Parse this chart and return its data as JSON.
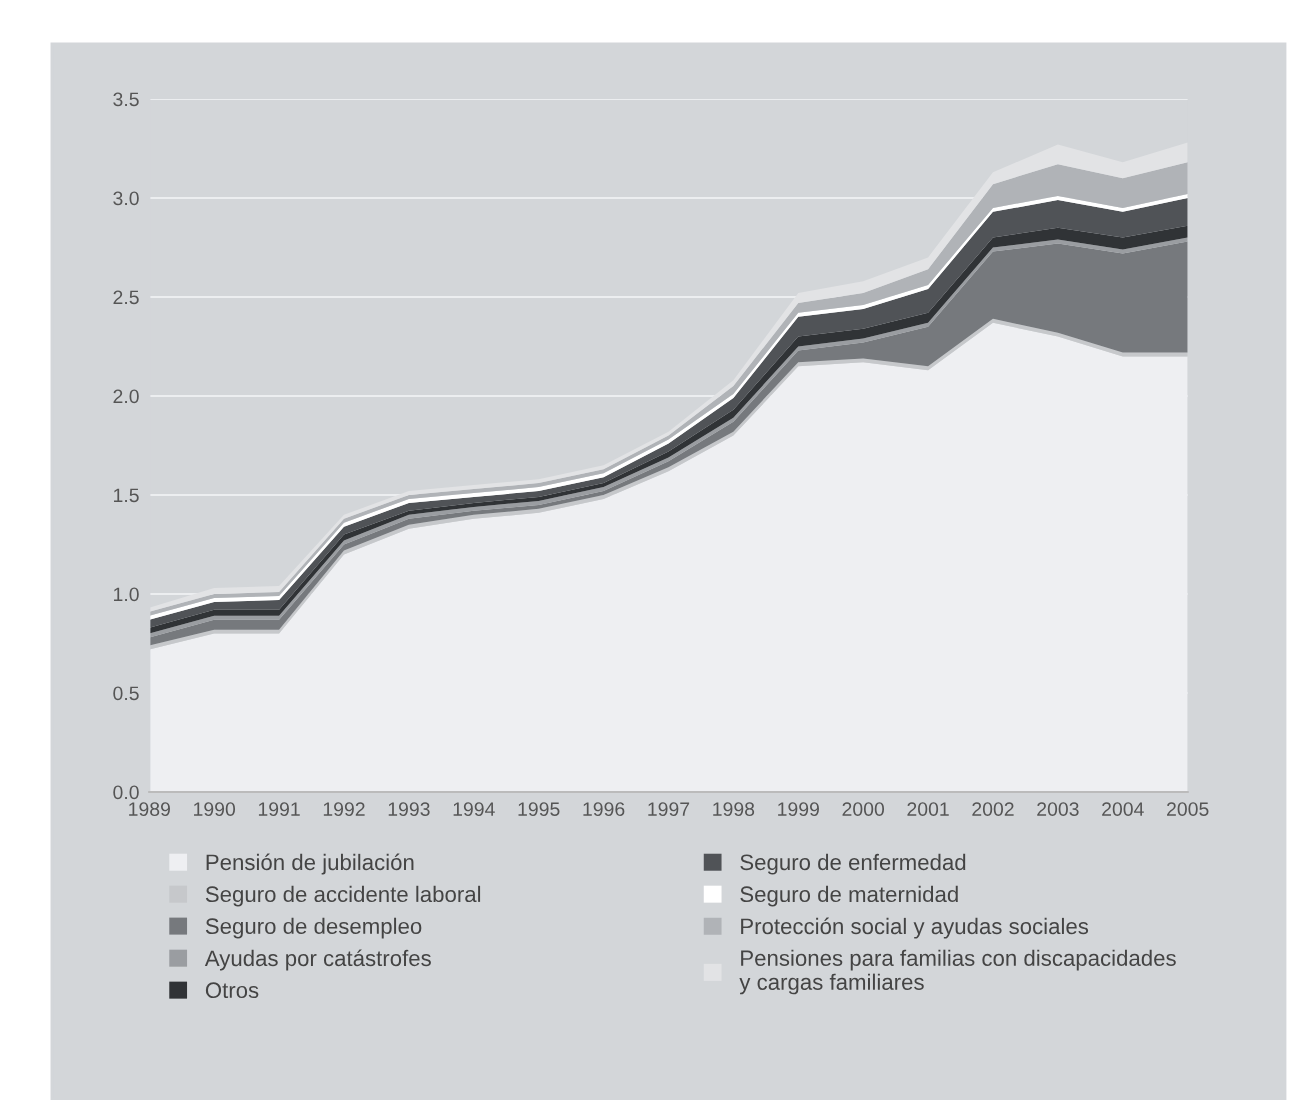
{
  "chart_data": {
    "type": "area",
    "stacked": true,
    "categories": [
      "1989",
      "1990",
      "1991",
      "1992",
      "1993",
      "1994",
      "1995",
      "1996",
      "1997",
      "1998",
      "1999",
      "2000",
      "2001",
      "2002",
      "2003",
      "2004",
      "2005"
    ],
    "ylim": [
      0,
      3.5
    ],
    "yticks": [
      {
        "value": 0,
        "label": "0.0"
      },
      {
        "value": 0.5,
        "label": "0.5"
      },
      {
        "value": 1,
        "label": "1.0"
      },
      {
        "value": 1.5,
        "label": "1.5"
      },
      {
        "value": 2,
        "label": "2.0"
      },
      {
        "value": 2.5,
        "label": "2.5"
      },
      {
        "value": 3,
        "label": "3.0"
      },
      {
        "value": 3.5,
        "label": "3.5"
      }
    ],
    "grid": "y",
    "legend": "bottom",
    "series": [
      {
        "name": "Pensión de jubilación",
        "color": "#eeeff2",
        "values": [
          0.72,
          0.8,
          0.8,
          1.2,
          1.33,
          1.38,
          1.41,
          1.48,
          1.62,
          1.8,
          2.15,
          2.17,
          2.13,
          2.37,
          2.3,
          2.2,
          2.2
        ]
      },
      {
        "name": "Seguro de accidente laboral",
        "color": "#c6c8cb",
        "values": [
          0.02,
          0.02,
          0.02,
          0.02,
          0.02,
          0.02,
          0.02,
          0.02,
          0.02,
          0.02,
          0.02,
          0.02,
          0.02,
          0.02,
          0.02,
          0.02,
          0.02
        ]
      },
      {
        "name": "Seguro de desempleo",
        "color": "#76797d",
        "values": [
          0.04,
          0.05,
          0.05,
          0.03,
          0.03,
          0.02,
          0.02,
          0.02,
          0.03,
          0.05,
          0.06,
          0.08,
          0.2,
          0.34,
          0.45,
          0.5,
          0.56
        ]
      },
      {
        "name": "Ayudas por catástrofes",
        "color": "#9a9da1",
        "values": [
          0.02,
          0.02,
          0.02,
          0.02,
          0.02,
          0.02,
          0.02,
          0.02,
          0.02,
          0.02,
          0.02,
          0.02,
          0.02,
          0.02,
          0.02,
          0.02,
          0.02
        ]
      },
      {
        "name": "Otros",
        "color": "#303336",
        "values": [
          0.03,
          0.03,
          0.03,
          0.03,
          0.02,
          0.02,
          0.02,
          0.02,
          0.03,
          0.04,
          0.05,
          0.05,
          0.05,
          0.05,
          0.06,
          0.06,
          0.06
        ]
      },
      {
        "name": "Seguro de enfermedad",
        "color": "#505357",
        "values": [
          0.04,
          0.04,
          0.05,
          0.04,
          0.04,
          0.03,
          0.03,
          0.03,
          0.04,
          0.06,
          0.1,
          0.1,
          0.12,
          0.13,
          0.14,
          0.13,
          0.14
        ]
      },
      {
        "name": "Seguro de maternidad",
        "color": "#ffffff",
        "values": [
          0.02,
          0.02,
          0.02,
          0.02,
          0.02,
          0.02,
          0.02,
          0.02,
          0.02,
          0.02,
          0.02,
          0.02,
          0.02,
          0.02,
          0.02,
          0.02,
          0.02
        ]
      },
      {
        "name": "Protección social y ayudas sociales",
        "color": "#b0b3b7",
        "values": [
          0.02,
          0.02,
          0.02,
          0.02,
          0.02,
          0.02,
          0.02,
          0.02,
          0.02,
          0.04,
          0.05,
          0.06,
          0.08,
          0.12,
          0.16,
          0.15,
          0.16
        ]
      },
      {
        "name": "Pensiones para familias con discapacidades\ny cargas familiares",
        "color": "#e2e3e5",
        "values": [
          0.02,
          0.03,
          0.03,
          0.02,
          0.02,
          0.02,
          0.02,
          0.02,
          0.02,
          0.03,
          0.05,
          0.06,
          0.06,
          0.06,
          0.1,
          0.08,
          0.1
        ]
      }
    ]
  }
}
